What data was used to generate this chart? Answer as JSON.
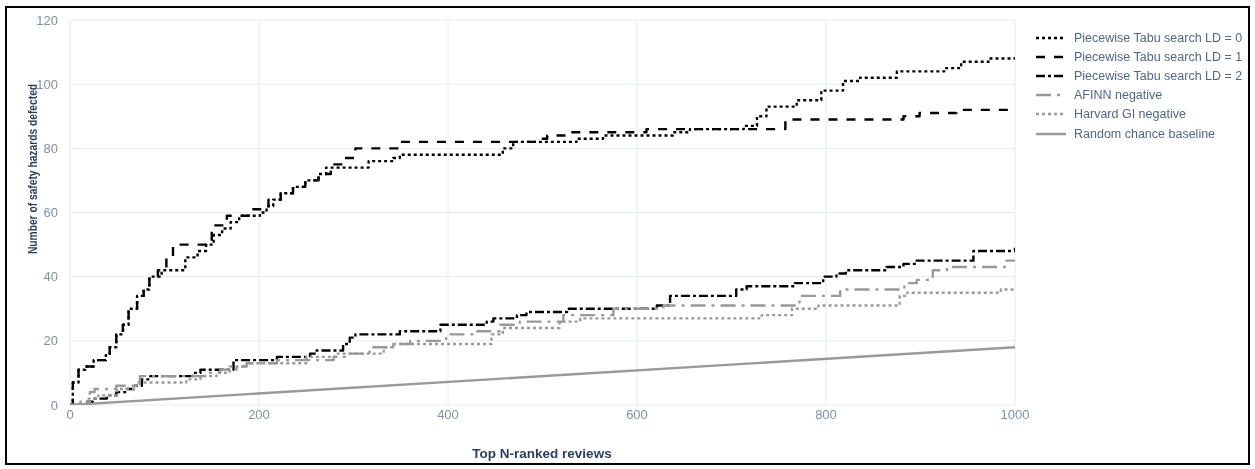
{
  "chart_data": {
    "type": "step",
    "xlabel": "Top N-ranked reviews",
    "ylabel": "Number of safety hazards defected",
    "xlim": [
      0,
      1000
    ],
    "ylim": [
      0,
      120
    ],
    "xticks": [
      0,
      200,
      400,
      600,
      800,
      1000
    ],
    "yticks": [
      0,
      20,
      40,
      60,
      80,
      100,
      120
    ],
    "grid": true,
    "legend": "right",
    "series": [
      {
        "name": "Piecewise Tabu search LD = 0",
        "color": "#000000",
        "line_style": "dotted",
        "x": [
          0,
          3,
          9,
          16,
          25,
          38,
          42,
          49,
          56,
          62,
          71,
          78,
          84,
          97,
          122,
          135,
          144,
          152,
          161,
          170,
          179,
          201,
          208,
          215,
          223,
          236,
          249,
          263,
          271,
          316,
          342,
          349,
          458,
          469,
          536,
          564,
          638,
          656,
          713,
          727,
          737,
          769,
          795,
          818,
          836,
          875,
          925,
          943,
          972,
          1000
        ],
        "values": [
          0,
          7,
          11,
          12,
          14,
          16,
          18,
          22,
          25,
          30,
          34,
          36,
          40,
          42,
          46,
          48,
          50,
          53,
          55,
          57,
          59,
          60,
          62,
          64,
          66,
          68,
          70,
          72,
          74,
          76,
          77,
          78,
          80,
          82,
          83,
          84,
          85,
          86,
          87,
          90,
          93,
          95,
          98,
          101,
          102,
          104,
          105,
          107,
          108,
          108
        ]
      },
      {
        "name": "Piecewise Tabu search LD = 1",
        "color": "#000000",
        "line_style": "dashed",
        "x": [
          0,
          3,
          9,
          16,
          25,
          38,
          42,
          49,
          56,
          62,
          71,
          78,
          84,
          93,
          102,
          109,
          144,
          150,
          166,
          192,
          210,
          223,
          236,
          249,
          263,
          276,
          289,
          302,
          349,
          494,
          505,
          526,
          610,
          757,
          882,
          899,
          938,
          1000
        ],
        "values": [
          0,
          7,
          11,
          12,
          14,
          16,
          18,
          22,
          25,
          30,
          34,
          36,
          40,
          42,
          46,
          50,
          51,
          56,
          59,
          61,
          64,
          66,
          68,
          70,
          72,
          75,
          77,
          80,
          82,
          83,
          84,
          85,
          86,
          89,
          90,
          91,
          92,
          92
        ]
      },
      {
        "name": "Piecewise Tabu search LD = 2",
        "color": "#000000",
        "line_style": "dashdot",
        "x": [
          0,
          18,
          24,
          39,
          49,
          60,
          69,
          76,
          85,
          130,
          138,
          173,
          219,
          254,
          261,
          289,
          296,
          302,
          349,
          392,
          441,
          448,
          473,
          483,
          526,
          621,
          635,
          705,
          716,
          767,
          797,
          811,
          821,
          864,
          882,
          896,
          956,
          1000
        ],
        "values": [
          0,
          1,
          2,
          3,
          4,
          5,
          6,
          8,
          9,
          10,
          11,
          14,
          15,
          16,
          17,
          19,
          21,
          22,
          23,
          25,
          26,
          27,
          28,
          29,
          30,
          31,
          34,
          36,
          37,
          38,
          40,
          41,
          42,
          43,
          44,
          45,
          48,
          49
        ]
      },
      {
        "name": "AFINN negative",
        "color": "#999999",
        "line_style": "longdashdot",
        "x": [
          0,
          11,
          21,
          26,
          49,
          74,
          145,
          159,
          176,
          187,
          219,
          279,
          293,
          317,
          342,
          360,
          398,
          427,
          455,
          476,
          522,
          575,
          628,
          768,
          772,
          815,
          883,
          896,
          913,
          928,
          991,
          1000
        ],
        "values": [
          0,
          1,
          4,
          5,
          6,
          9,
          10,
          11,
          12,
          13,
          14,
          15,
          16,
          18,
          19,
          20,
          22,
          23,
          25,
          26,
          28,
          30,
          31,
          32,
          34,
          36,
          38,
          39,
          42,
          43,
          45,
          45
        ]
      },
      {
        "name": "Harvard GI negative",
        "color": "#999999",
        "line_style": "dotted",
        "x": [
          0,
          18,
          30,
          50,
          70,
          123,
          138,
          155,
          169,
          187,
          250,
          282,
          332,
          342,
          446,
          458,
          518,
          540,
          732,
          764,
          792,
          878,
          886,
          985,
          1000
        ],
        "values": [
          0,
          2,
          3,
          5,
          7,
          8,
          9,
          10,
          12,
          13,
          15,
          16,
          18,
          19,
          22,
          24,
          26,
          27,
          28,
          30,
          31,
          34,
          35,
          36,
          36
        ]
      },
      {
        "name": "Random chance baseline",
        "color": "#999999",
        "line_style": "solid",
        "type": "line",
        "x": [
          0,
          1000
        ],
        "values": [
          0,
          18
        ]
      }
    ]
  }
}
